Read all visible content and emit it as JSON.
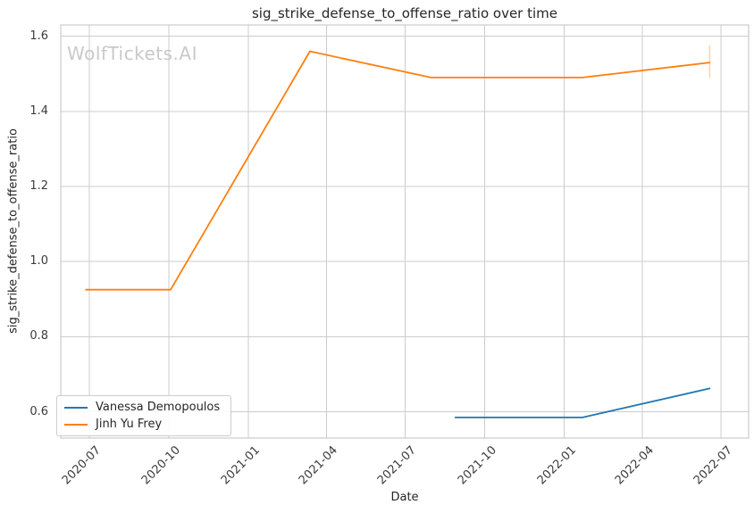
{
  "chart_data": {
    "type": "line",
    "title": "sig_strike_defense_to_offense_ratio over time",
    "xlabel": "Date",
    "ylabel": "sig_strike_defense_to_offense_ratio",
    "watermark": "WolfTickets.AI",
    "grid": true,
    "legend_position": "lower left",
    "xlim": [
      "2020-05-29",
      "2022-08-02"
    ],
    "ylim": [
      0.53,
      1.63
    ],
    "x_ticks": [
      {
        "label": "2020-07",
        "date": "2020-07-01"
      },
      {
        "label": "2020-10",
        "date": "2020-10-01"
      },
      {
        "label": "2021-01",
        "date": "2021-01-01"
      },
      {
        "label": "2021-04",
        "date": "2021-04-01"
      },
      {
        "label": "2021-07",
        "date": "2021-07-01"
      },
      {
        "label": "2021-10",
        "date": "2021-10-01"
      },
      {
        "label": "2022-01",
        "date": "2022-01-01"
      },
      {
        "label": "2022-04",
        "date": "2022-04-01"
      },
      {
        "label": "2022-07",
        "date": "2022-07-01"
      }
    ],
    "y_ticks": [
      {
        "label": "0.6",
        "value": 0.6
      },
      {
        "label": "0.8",
        "value": 0.8
      },
      {
        "label": "1.0",
        "value": 1.0
      },
      {
        "label": "1.2",
        "value": 1.2
      },
      {
        "label": "1.4",
        "value": 1.4
      },
      {
        "label": "1.6",
        "value": 1.6
      }
    ],
    "series": [
      {
        "name": "Vanessa Demopoulos",
        "color": "#1f77b4",
        "points": [
          {
            "date": "2021-08-28",
            "value": 0.585
          },
          {
            "date": "2022-01-22",
            "value": 0.585
          },
          {
            "date": "2022-06-18",
            "value": 0.662
          }
        ]
      },
      {
        "name": "Jinh Yu Frey",
        "color": "#ff7f0e",
        "points": [
          {
            "date": "2020-06-27",
            "value": 0.925
          },
          {
            "date": "2020-10-03",
            "value": 0.925
          },
          {
            "date": "2021-03-13",
            "value": 1.56
          },
          {
            "date": "2021-07-31",
            "value": 1.49
          },
          {
            "date": "2022-01-22",
            "value": 1.49
          },
          {
            "date": "2022-06-18",
            "value": 1.53,
            "error_low": 1.489,
            "error_high": 1.576
          }
        ]
      }
    ],
    "colors": {
      "grid": "#cccccc",
      "spine": "#c0c0c0",
      "text": "#262626",
      "tick_text": "#3b3b3b",
      "watermark": "#c9c9c9"
    }
  }
}
